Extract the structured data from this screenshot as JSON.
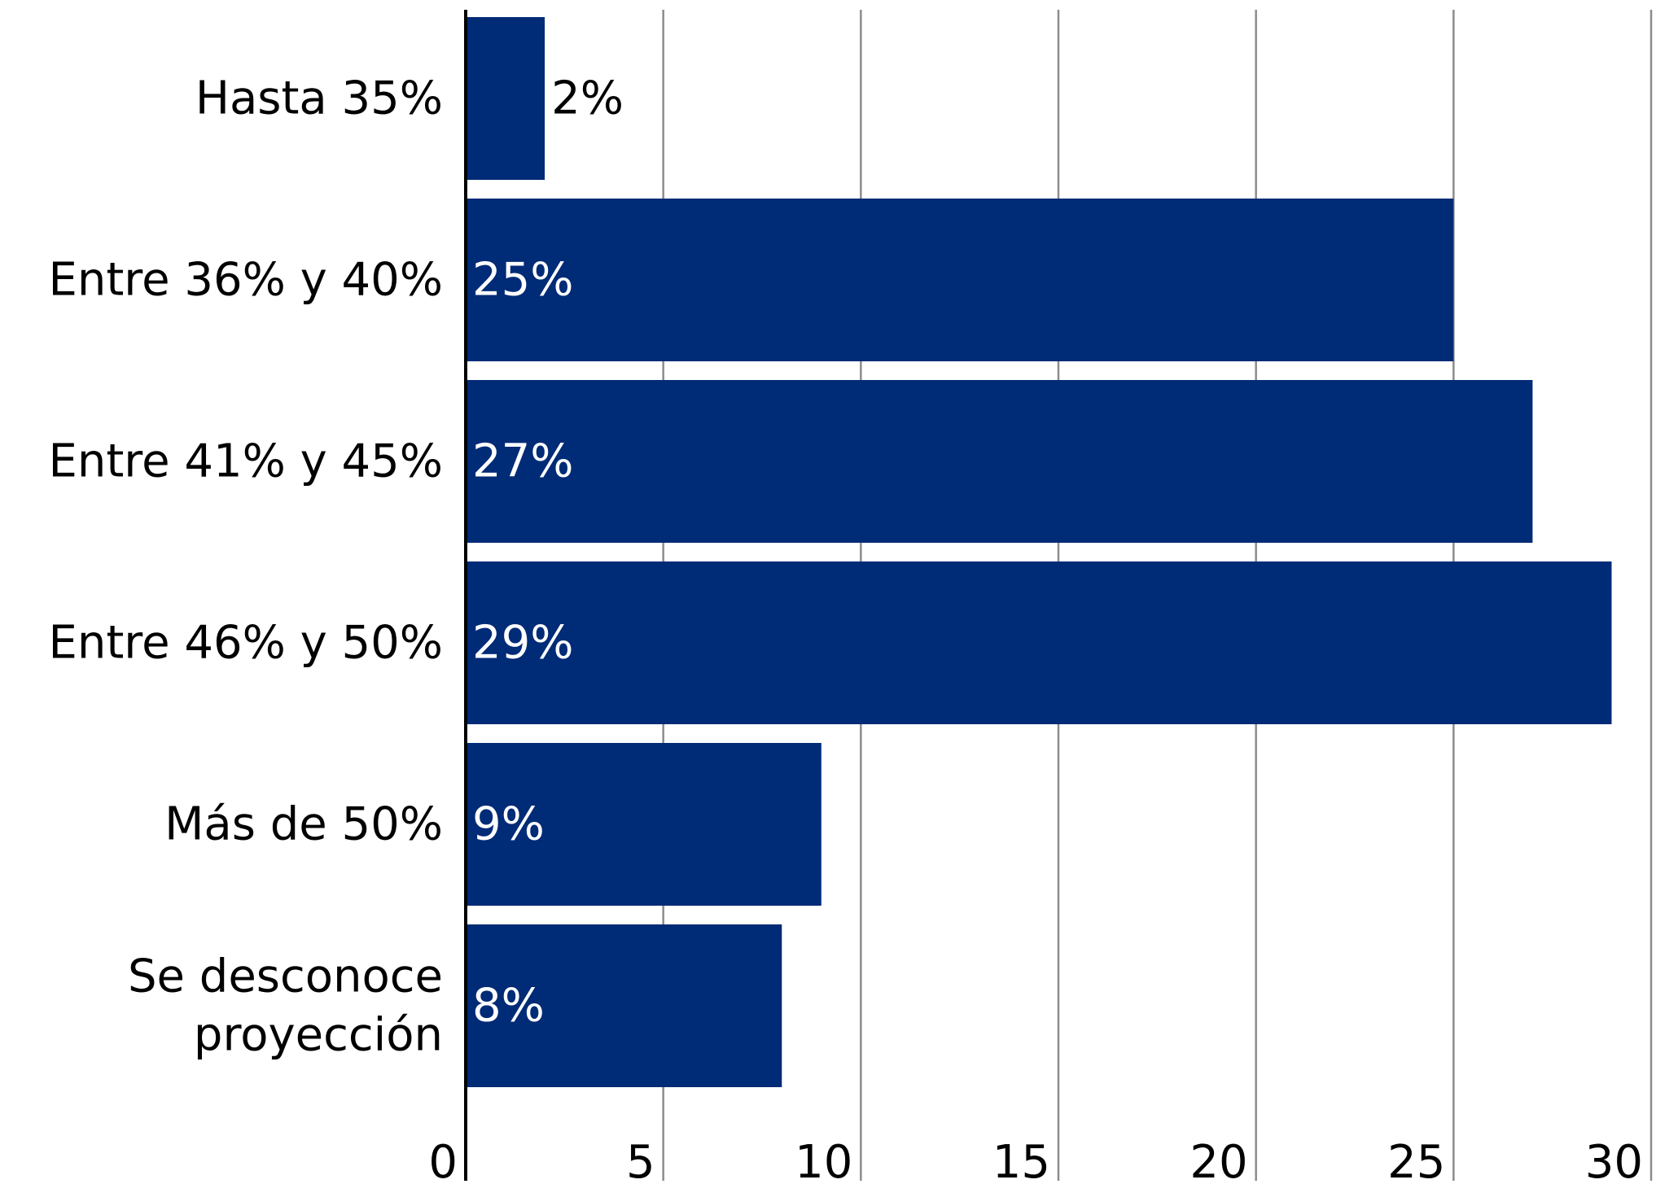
{
  "chart_data": {
    "type": "bar",
    "orientation": "horizontal",
    "categories": [
      "Hasta 35%",
      "Entre 36% y 40%",
      "Entre 41% y 45%",
      "Entre 46% y 50%",
      "Más de 50%",
      "Se desconoce proyección"
    ],
    "category_lines": [
      [
        "Hasta 35%"
      ],
      [
        "Entre 36% y 40%"
      ],
      [
        "Entre 41% y 45%"
      ],
      [
        "Entre 46% y 50%"
      ],
      [
        "Más de 50%"
      ],
      [
        "Se desconoce",
        "proyección"
      ]
    ],
    "values": [
      2,
      25,
      27,
      29,
      9,
      8
    ],
    "data_labels": [
      "2%",
      "25%",
      "27%",
      "29%",
      "9%",
      "8%"
    ],
    "title": "",
    "xlabel": "",
    "ylabel": "",
    "xlim": [
      0,
      30
    ],
    "x_ticks": [
      0,
      5,
      10,
      15,
      20,
      25,
      30
    ],
    "x_tick_labels": [
      "0",
      "5",
      "10",
      "15",
      "20",
      "25",
      "30"
    ],
    "grid": "vertical",
    "legend": "none",
    "colors": {
      "bar": "#002b76",
      "grid": "#8c8c8c",
      "axis": "#000000",
      "label_inside": "#ffffff",
      "label_outside": "#000000",
      "text": "#000000"
    }
  }
}
